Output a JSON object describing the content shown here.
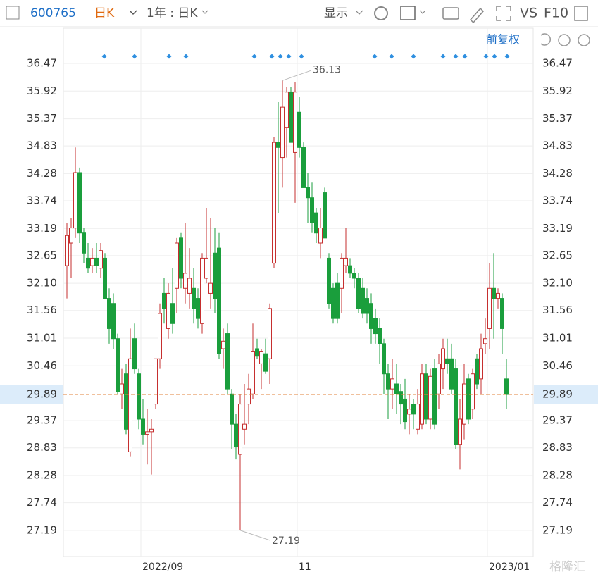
{
  "toolbar": {
    "code": "600765",
    "period": "日K",
    "range": "1年 : 日K",
    "display": "显示",
    "vs": "VS",
    "f10": "F10"
  },
  "adjust": "前复权",
  "watermark": "格隆汇",
  "chart_data": {
    "type": "candlestick",
    "up_color": "#c62f2f",
    "down_color": "#1a9e3c",
    "ylim": [
      26.67,
      36.75
    ],
    "yticks": [
      36.47,
      35.92,
      35.37,
      34.83,
      34.28,
      33.74,
      33.19,
      32.65,
      {
        "value": 32.1,
        "label": "32.10"
      },
      31.56,
      31.01,
      30.46,
      29.37,
      28.83,
      28.28,
      27.74,
      27.19
    ],
    "last_price": 29.89,
    "grid": true,
    "categories": [
      null,
      null,
      null,
      null,
      null,
      null,
      null,
      null,
      null,
      null,
      null,
      null,
      null,
      null,
      null,
      null,
      null,
      null,
      "2022/09",
      null,
      null,
      null,
      null,
      null,
      null,
      null,
      null,
      null,
      null,
      null,
      null,
      null,
      null,
      null,
      null,
      null,
      null,
      null,
      null,
      null,
      null,
      null,
      null,
      null,
      null,
      null,
      null,
      null,
      null,
      null,
      null,
      null,
      null,
      null,
      null,
      "11",
      null,
      null,
      null,
      null,
      null,
      null,
      null,
      null,
      null,
      null,
      null,
      null,
      null,
      null,
      null,
      null,
      null,
      null,
      null,
      null,
      null,
      null,
      null,
      null,
      null,
      null,
      null,
      null,
      null,
      null,
      null,
      null,
      null,
      null,
      null,
      null,
      null,
      null,
      null,
      null,
      null,
      null,
      null,
      null,
      "2023/01",
      null,
      null,
      null,
      null
    ],
    "open": [
      32.45,
      32.9,
      33.2,
      34.3,
      33.1,
      32.6,
      32.45,
      32.6,
      32.4,
      32.6,
      31.8,
      31.7,
      31.0,
      29.9,
      30.3,
      28.75,
      31.0,
      30.3,
      29.4,
      29.1,
      29.15,
      29.7,
      30.6,
      31.9,
      31.2,
      31.7,
      32.0,
      33.0,
      32.0,
      31.9,
      32.0,
      31.8,
      31.3,
      32.2,
      31.9,
      32.7,
      32.8,
      30.8,
      31.1,
      29.9,
      29.3,
      28.7,
      29.2,
      29.7,
      29.9,
      30.8,
      30.5,
      30.7,
      30.6,
      32.5,
      34.9,
      34.6,
      35.2,
      35.9,
      34.7,
      35.5,
      34.8,
      34.0,
      33.8,
      33.5,
      32.9,
      33.9,
      32.6,
      32.0,
      32.1,
      32.0,
      32.45,
      32.45,
      32.3,
      32.2,
      32.0,
      31.8,
      31.7,
      31.4,
      31.2,
      30.9,
      30.3,
      30.0,
      30.1,
      29.95,
      29.8,
      29.5,
      29.7,
      29.2,
      29.3,
      30.3,
      29.4,
      30.4,
      29.9,
      30.4,
      30.6,
      30.6,
      30.4,
      28.9,
      29.3,
      30.2,
      29.6,
      30.6,
      30.2,
      30.9,
      31.2,
      32.0,
      31.8,
      31.8,
      30.2
    ],
    "high": [
      33.3,
      33.4,
      34.8,
      34.4,
      33.2,
      32.9,
      32.8,
      32.9,
      32.9,
      32.7,
      32.0,
      31.9,
      31.1,
      30.4,
      30.5,
      31.2,
      31.3,
      30.4,
      29.8,
      29.6,
      29.4,
      30.6,
      31.7,
      32.2,
      32.1,
      32.4,
      33.0,
      33.1,
      33.3,
      32.8,
      32.4,
      32.0,
      32.7,
      33.6,
      33.4,
      33.2,
      33.1,
      31.2,
      31.3,
      30.0,
      29.5,
      29.9,
      30.1,
      30.3,
      31.3,
      31.0,
      30.8,
      31.0,
      31.7,
      35.0,
      35.7,
      36.13,
      36.0,
      36.0,
      36.1,
      35.8,
      34.9,
      34.3,
      34.1,
      33.6,
      33.6,
      34.0,
      32.7,
      32.1,
      32.3,
      32.7,
      33.2,
      32.6,
      32.4,
      32.3,
      32.2,
      32.0,
      31.9,
      31.6,
      31.4,
      31.0,
      30.5,
      30.6,
      30.5,
      30.1,
      30.2,
      29.9,
      29.8,
      30.0,
      30.5,
      30.5,
      30.4,
      30.6,
      30.7,
      31.0,
      31.0,
      30.9,
      30.6,
      29.8,
      30.5,
      30.3,
      30.4,
      30.7,
      31.1,
      31.4,
      32.5,
      32.7,
      32.0,
      31.9,
      30.6
    ],
    "low": [
      31.8,
      32.2,
      33.0,
      32.9,
      32.5,
      32.3,
      32.3,
      32.3,
      32.2,
      31.8,
      30.9,
      30.8,
      29.9,
      29.6,
      29.1,
      28.65,
      30.3,
      29.2,
      28.9,
      28.5,
      28.3,
      29.6,
      30.4,
      31.3,
      31.0,
      31.1,
      31.5,
      32.0,
      31.7,
      31.6,
      31.3,
      31.2,
      31.1,
      32.1,
      31.6,
      31.5,
      30.6,
      30.4,
      29.9,
      28.8,
      28.6,
      27.19,
      28.9,
      29.3,
      29.8,
      30.6,
      30.0,
      30.3,
      30.1,
      32.4,
      33.5,
      34.0,
      34.6,
      34.9,
      33.7,
      34.6,
      34.0,
      33.3,
      33.1,
      32.9,
      32.6,
      33.0,
      31.6,
      31.3,
      31.3,
      31.5,
      32.3,
      32.2,
      32.0,
      31.5,
      31.4,
      31.3,
      30.9,
      30.9,
      30.5,
      29.9,
      29.4,
      29.6,
      29.5,
      29.3,
      29.2,
      29.1,
      29.2,
      29.1,
      29.2,
      29.3,
      29.2,
      29.2,
      29.6,
      30.0,
      30.3,
      29.9,
      28.8,
      28.4,
      29.0,
      29.3,
      29.4,
      30.0,
      29.9,
      30.7,
      30.8,
      31.0,
      31.6,
      30.7,
      29.6
    ],
    "close": [
      33.05,
      33.2,
      34.3,
      33.1,
      32.7,
      32.4,
      32.6,
      32.45,
      32.75,
      31.8,
      31.2,
      31.0,
      29.95,
      30.1,
      29.2,
      30.6,
      30.4,
      29.4,
      29.1,
      29.15,
      29.2,
      30.6,
      31.5,
      31.6,
      31.9,
      31.3,
      32.9,
      32.2,
      32.3,
      32.2,
      31.6,
      31.4,
      32.6,
      32.6,
      32.1,
      31.8,
      30.7,
      30.95,
      30.0,
      29.3,
      28.85,
      29.7,
      29.3,
      30.0,
      30.75,
      30.65,
      30.75,
      30.35,
      31.6,
      34.9,
      34.8,
      35.6,
      35.9,
      34.9,
      35.9,
      34.8,
      34.0,
      33.8,
      33.3,
      33.1,
      33.2,
      33.0,
      31.7,
      31.4,
      31.4,
      32.6,
      32.6,
      32.3,
      32.2,
      31.6,
      31.5,
      31.5,
      31.2,
      31.1,
      30.9,
      30.3,
      30.0,
      30.2,
      29.9,
      29.7,
      29.35,
      29.6,
      29.5,
      29.7,
      30.3,
      29.4,
      30.25,
      29.3,
      30.5,
      30.8,
      30.5,
      30.0,
      28.9,
      29.4,
      30.1,
      29.4,
      30.3,
      30.1,
      30.8,
      31.0,
      32.0,
      31.8,
      31.9,
      31.2,
      29.89
    ]
  }
}
